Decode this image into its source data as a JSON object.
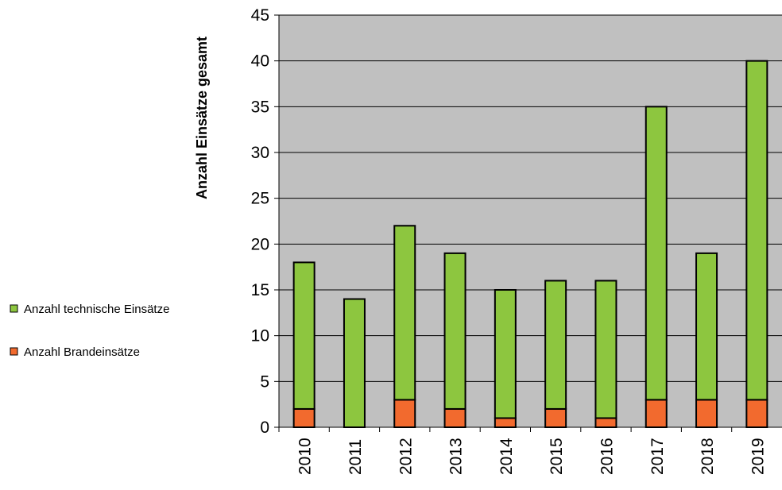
{
  "chart_data": {
    "type": "bar",
    "stacked": true,
    "categories": [
      "2010",
      "2011",
      "2012",
      "2013",
      "2014",
      "2015",
      "2016",
      "2017",
      "2018",
      "2019"
    ],
    "series": [
      {
        "name": "Anzahl Brandeinsätze",
        "values": [
          2,
          0,
          3,
          2,
          1,
          2,
          1,
          3,
          3,
          3
        ],
        "color": "#f26a2e"
      },
      {
        "name": "Anzahl technische Einsätze",
        "values": [
          16,
          14,
          19,
          17,
          14,
          14,
          15,
          32,
          16,
          37
        ],
        "color": "#8dc63f"
      }
    ],
    "title": "",
    "xlabel": "",
    "ylabel": "Anzahl Einsätze gesamt",
    "ylim": [
      0,
      45
    ],
    "yticks": [
      0,
      5,
      10,
      15,
      20,
      25,
      30,
      35,
      40,
      45
    ],
    "grid": true,
    "legend_position": "left",
    "legend_order": [
      "Anzahl technische Einsätze",
      "Anzahl Brandeinsätze"
    ],
    "plot_background": "#c0c0c0"
  }
}
